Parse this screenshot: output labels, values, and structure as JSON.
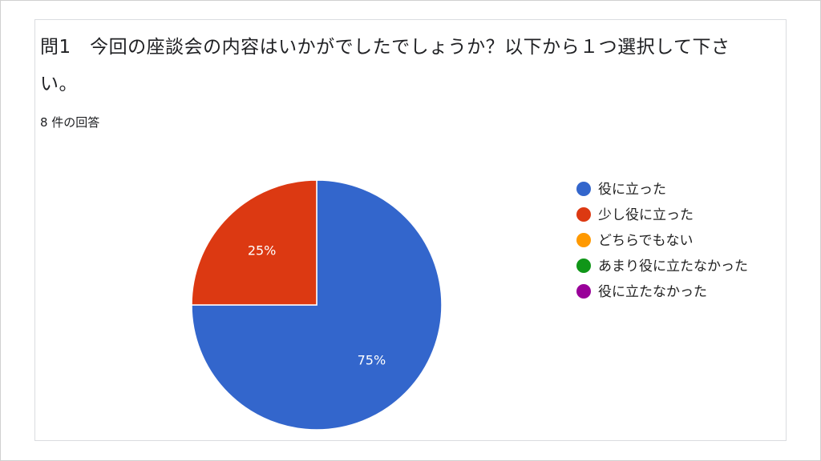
{
  "question": {
    "title": "問1　今回の座談会の内容はいかがでしたでしょうか？以下から１つ選択して下さい。",
    "response_count": "8 件の回答"
  },
  "chart_data": {
    "type": "pie",
    "title": "",
    "slices": [
      {
        "label": "役に立った",
        "value": 75,
        "display": "75%",
        "color": "#3366cc"
      },
      {
        "label": "少し役に立った",
        "value": 25,
        "display": "25%",
        "color": "#dc3912"
      },
      {
        "label": "どちらでもない",
        "value": 0,
        "display": "",
        "color": "#ff9900"
      },
      {
        "label": "あまり役に立たなかった",
        "value": 0,
        "display": "",
        "color": "#109618"
      },
      {
        "label": "役に立たなかった",
        "value": 0,
        "display": "",
        "color": "#990099"
      }
    ],
    "legend_position": "right"
  }
}
